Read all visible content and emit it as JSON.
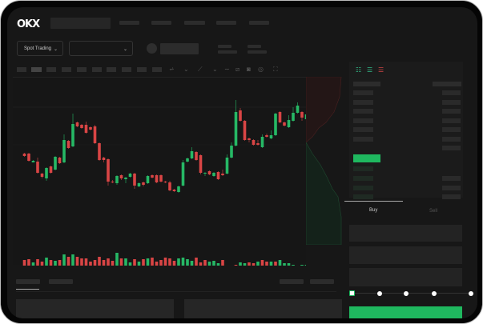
{
  "header": {
    "logo": "OKX"
  },
  "toolbar": {
    "market_select": "Spot Trading"
  },
  "trade": {
    "tabs": [
      {
        "label": "Buy",
        "active": true
      },
      {
        "label": "Sell",
        "active": false
      }
    ],
    "leverage_fraction": 0
  },
  "colors": {
    "up": "#26b865",
    "down": "#d94545",
    "accent": "#1fb85f",
    "bg": "#171717"
  },
  "icons": [
    "chevron-down-icon",
    "indicator-icon",
    "line-tool-icon",
    "ruler-icon",
    "camera-icon",
    "settings-icon",
    "fullscreen-icon",
    "orderbook-both-icon",
    "orderbook-buy-icon",
    "orderbook-sell-icon"
  ],
  "chart_data": {
    "type": "candlestick",
    "ohlc": [
      [
        53,
        50,
        54,
        49
      ],
      [
        53,
        44,
        54,
        43
      ],
      [
        42,
        44,
        45,
        42
      ],
      [
        43,
        29,
        48,
        28
      ],
      [
        28,
        24,
        29,
        22
      ],
      [
        22,
        35,
        36,
        19
      ],
      [
        37,
        29,
        38,
        28
      ],
      [
        33,
        49,
        50,
        32
      ],
      [
        48,
        41,
        49,
        40
      ],
      [
        42,
        70,
        77,
        41
      ],
      [
        69,
        60,
        70,
        59
      ],
      [
        62,
        90,
        103,
        61
      ],
      [
        92,
        87,
        93,
        86
      ],
      [
        89,
        85,
        90,
        84
      ],
      [
        89,
        79,
        93,
        78
      ],
      [
        86,
        83,
        87,
        82
      ],
      [
        87,
        66,
        89,
        65
      ],
      [
        66,
        45,
        67,
        44
      ],
      [
        48,
        45,
        49,
        42
      ],
      [
        46,
        18,
        47,
        13
      ],
      [
        18,
        17,
        20,
        16
      ],
      [
        16,
        25,
        26,
        14
      ],
      [
        26,
        22,
        27,
        20
      ],
      [
        21,
        23,
        24,
        16
      ],
      [
        24,
        28,
        29,
        23
      ],
      [
        28,
        13,
        29,
        9
      ],
      [
        12,
        16,
        17,
        11
      ],
      [
        17,
        14,
        18,
        12
      ],
      [
        16,
        25,
        26,
        15
      ],
      [
        26,
        23,
        27,
        22
      ],
      [
        26,
        17,
        27,
        16
      ],
      [
        26,
        18,
        27,
        17
      ],
      [
        18,
        17,
        19,
        16
      ],
      [
        17,
        7,
        19,
        6
      ],
      [
        8,
        6,
        9,
        5
      ],
      [
        5,
        12,
        13,
        4
      ],
      [
        13,
        42,
        45,
        12
      ],
      [
        43,
        47,
        48,
        42
      ],
      [
        47,
        56,
        61,
        46
      ],
      [
        55,
        45,
        56,
        44
      ],
      [
        51,
        29,
        52,
        27
      ],
      [
        28,
        29,
        30,
        25
      ],
      [
        31,
        27,
        32,
        26
      ],
      [
        25,
        29,
        30,
        24
      ],
      [
        30,
        21,
        31,
        20
      ],
      [
        28,
        26,
        33,
        25
      ],
      [
        28,
        48,
        52,
        27
      ],
      [
        48,
        63,
        67,
        47
      ],
      [
        63,
        105,
        120,
        62
      ],
      [
        107,
        94,
        110,
        93
      ],
      [
        94,
        70,
        95,
        69
      ],
      [
        72,
        70,
        73,
        67
      ],
      [
        70,
        64,
        71,
        63
      ],
      [
        66,
        64,
        70,
        63
      ],
      [
        61,
        74,
        77,
        60
      ],
      [
        76,
        74,
        78,
        73
      ],
      [
        72,
        76,
        82,
        71
      ],
      [
        76,
        103,
        104,
        75
      ],
      [
        105,
        92,
        106,
        91
      ],
      [
        92,
        88,
        93,
        87
      ],
      [
        86,
        95,
        101,
        85
      ],
      [
        94,
        104,
        111,
        93
      ],
      [
        104,
        113,
        117,
        103
      ],
      [
        105,
        98,
        106,
        94
      ],
      [
        96,
        102,
        108,
        95
      ]
    ],
    "volume": [
      10,
      11,
      7,
      11,
      8,
      13,
      10,
      9,
      10,
      17,
      14,
      17,
      14,
      12,
      12,
      8,
      10,
      14,
      10,
      12,
      9,
      19,
      12,
      12,
      7,
      11,
      8,
      11,
      12,
      13,
      8,
      10,
      13,
      12,
      9,
      12,
      13,
      11,
      9,
      13,
      7,
      10,
      8,
      9,
      6,
      10,
      2,
      2,
      4,
      7,
      6,
      7,
      6,
      8,
      10,
      8,
      8,
      8,
      10,
      6,
      6,
      4,
      2,
      4,
      4
    ],
    "volume_up": [
      0,
      0,
      1,
      0,
      0,
      1,
      0,
      1,
      0,
      1,
      0,
      1,
      0,
      0,
      0,
      0,
      0,
      0,
      0,
      0,
      0,
      1,
      0,
      1,
      1,
      0,
      1,
      0,
      1,
      0,
      0,
      0,
      0,
      0,
      0,
      1,
      1,
      1,
      1,
      0,
      0,
      0,
      1,
      1,
      1,
      0,
      0,
      1,
      0,
      1,
      1,
      0,
      0,
      1,
      0,
      0,
      1,
      0,
      1,
      1,
      1,
      1,
      0,
      1,
      1
    ]
  }
}
